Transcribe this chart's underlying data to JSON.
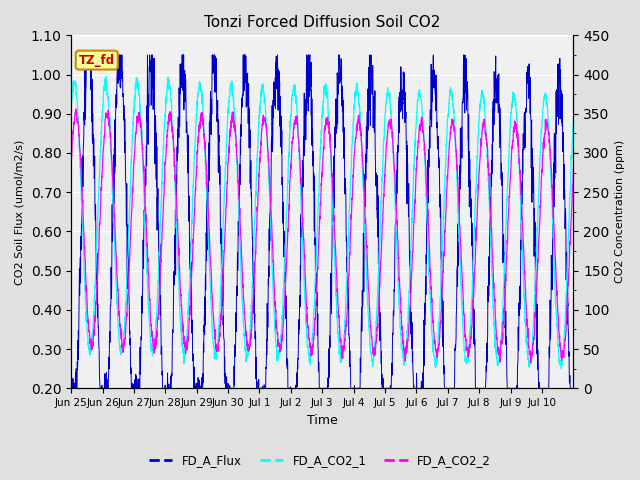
{
  "title": "Tonzi Forced Diffusion Soil CO2",
  "xlabel": "Time",
  "ylabel_left": "CO2 Soil Flux (umol/m2/s)",
  "ylabel_right": "CO2 Concentration (ppm)",
  "ylim_left": [
    0.2,
    1.1
  ],
  "ylim_right": [
    0,
    450
  ],
  "yticks_left": [
    0.2,
    0.3,
    0.4,
    0.5,
    0.6,
    0.7,
    0.8,
    0.9,
    1.0,
    1.1
  ],
  "yticks_right": [
    0,
    50,
    100,
    150,
    200,
    250,
    300,
    350,
    400,
    450
  ],
  "color_flux": "#0000CC",
  "color_co2_1": "#00FFFF",
  "color_co2_2": "#FF00FF",
  "legend_labels": [
    "FD_A_Flux",
    "FD_A_CO2_1",
    "FD_A_CO2_2"
  ],
  "tag_text": "TZ_fd",
  "tag_bg": "#FFFF99",
  "tag_border": "#CC8800",
  "tag_text_color": "#CC0000",
  "background_color": "#E0E0E0",
  "plot_bg": "#F0F0F0",
  "total_days": 16,
  "flux_min": 0.2,
  "flux_max": 1.05,
  "co2_1_min": 25,
  "co2_1_max": 415,
  "co2_2_min": 25,
  "co2_2_max": 380,
  "xtick_labels": [
    "Jun 25",
    "Jun 26",
    "Jun 27",
    "Jun 28",
    "Jun 29",
    "Jun 30",
    "Jul 1",
    "Jul 2",
    "Jul 3",
    "Jul 4",
    "Jul 5",
    "Jul 6",
    "Jul 7",
    "Jul 8",
    "Jul 9",
    "Jul 10"
  ],
  "grid_color": "#FFFFFF",
  "title_fontsize": 11,
  "tick_fontsize": 8,
  "label_fontsize": 8
}
